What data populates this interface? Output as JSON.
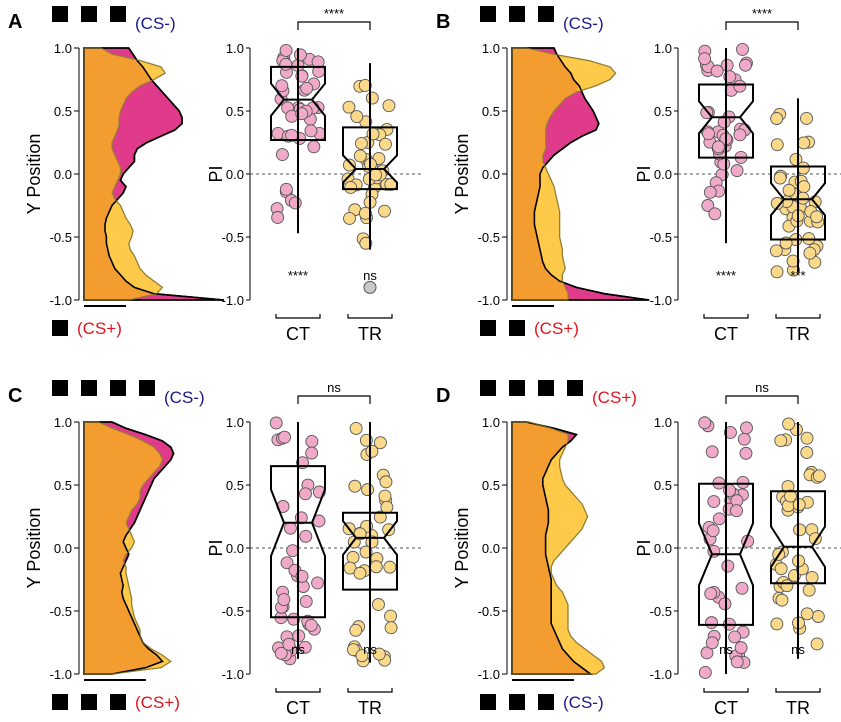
{
  "figure_description": "",
  "panels": [
    {
      "letter": "A",
      "top_label": "(CS-)",
      "top_label_color": "#1a1a8c",
      "top_squares": 3,
      "bottom_label": "(CS+)",
      "bottom_label_color": "#e0141e",
      "bottom_squares": 1,
      "density_ylabel": "Y Position",
      "pi_ylabel": "PI",
      "categories": [
        "CT",
        "TR"
      ],
      "comparison_label": "****",
      "sig_labels": [
        "****",
        "ns"
      ]
    },
    {
      "letter": "B",
      "top_label": "(CS-)",
      "top_label_color": "#1a1a8c",
      "top_squares": 3,
      "bottom_label": "(CS+)",
      "bottom_label_color": "#e0141e",
      "bottom_squares": 2,
      "density_ylabel": "Y Position",
      "pi_ylabel": "PI",
      "categories": [
        "CT",
        "TR"
      ],
      "comparison_label": "****",
      "sig_labels": [
        "****",
        "***"
      ]
    },
    {
      "letter": "C",
      "top_label": "(CS-)",
      "top_label_color": "#1a1a8c",
      "top_squares": 4,
      "bottom_label": "(CS+)",
      "bottom_label_color": "#e0141e",
      "bottom_squares": 3,
      "density_ylabel": "Y Position",
      "pi_ylabel": "PI",
      "categories": [
        "CT",
        "TR"
      ],
      "comparison_label": "ns",
      "sig_labels": [
        "ns",
        "ns"
      ]
    },
    {
      "letter": "D",
      "top_label": "(CS+)",
      "top_label_color": "#e0141e",
      "top_squares": 4,
      "bottom_label": "(CS-)",
      "bottom_label_color": "#1a1a8c",
      "bottom_squares": 3,
      "density_ylabel": "Y Position",
      "pi_ylabel": "PI",
      "categories": [
        "CT",
        "TR"
      ],
      "comparison_label": "ns",
      "sig_labels": [
        "ns",
        "ns"
      ]
    }
  ],
  "colors": {
    "ct_fill": "#e03a8a",
    "ct_point": "#f0a9c8",
    "tr_fill": "#ffc94a",
    "tr_point": "#fbd98a",
    "overlap_fill": "#f39c2f",
    "outlier": "#c8c8c8"
  },
  "chart_data": [
    {
      "panel": "A",
      "type": "box",
      "ylabel": "PI",
      "ylim": [
        -1.0,
        1.0
      ],
      "yticks": [
        "1.0",
        "0.5",
        "0.0",
        "-0.5",
        "-1.0"
      ],
      "categories": [
        "CT",
        "TR"
      ],
      "series": [
        {
          "name": "CT",
          "min": -0.47,
          "q1": 0.27,
          "median": 0.59,
          "q3": 0.85,
          "max": 1.0
        },
        {
          "name": "TR",
          "min": -0.6,
          "q1": -0.12,
          "median": 0.04,
          "q3": 0.37,
          "max": 0.88,
          "outliers": [
            -0.9
          ]
        }
      ],
      "density": {
        "ylabel": "Y Position",
        "ylim": [
          -1.0,
          1.0
        ],
        "ct_width": [
          0.32,
          0.35,
          0.38,
          0.42,
          0.45,
          0.48,
          0.52,
          0.56,
          0.6,
          0.64,
          0.68,
          0.7,
          0.7,
          0.65,
          0.55,
          0.45,
          0.38,
          0.36,
          0.36,
          0.32,
          0.28,
          0.26,
          0.3,
          0.28,
          0.24,
          0.2,
          0.18,
          0.16,
          0.15,
          0.15,
          0.16,
          0.16,
          0.17,
          0.18,
          0.2,
          0.22,
          0.26,
          0.3,
          0.36,
          0.5,
          1.0
        ],
        "tr_width": [
          0.12,
          0.2,
          0.4,
          0.55,
          0.58,
          0.5,
          0.4,
          0.34,
          0.3,
          0.28,
          0.26,
          0.25,
          0.25,
          0.24,
          0.22,
          0.2,
          0.2,
          0.22,
          0.24,
          0.26,
          0.26,
          0.24,
          0.22,
          0.2,
          0.22,
          0.26,
          0.28,
          0.3,
          0.33,
          0.35,
          0.34,
          0.32,
          0.33,
          0.36,
          0.38,
          0.4,
          0.44,
          0.5,
          0.56,
          0.52,
          0.32
        ]
      }
    },
    {
      "panel": "B",
      "type": "box",
      "ylabel": "PI",
      "ylim": [
        -1.0,
        1.0
      ],
      "yticks": [
        "1.0",
        "0.5",
        "0.0",
        "-0.5",
        "-1.0"
      ],
      "categories": [
        "CT",
        "TR"
      ],
      "series": [
        {
          "name": "CT",
          "min": -0.55,
          "q1": 0.13,
          "median": 0.45,
          "q3": 0.71,
          "max": 1.0
        },
        {
          "name": "TR",
          "min": -0.78,
          "q1": -0.52,
          "median": -0.2,
          "q3": 0.06,
          "max": 0.6
        }
      ],
      "density": {
        "ylabel": "Y Position",
        "ylim": [
          -1.0,
          1.0
        ],
        "ct_width": [
          0.3,
          0.32,
          0.35,
          0.38,
          0.42,
          0.44,
          0.48,
          0.5,
          0.52,
          0.55,
          0.58,
          0.6,
          0.62,
          0.6,
          0.5,
          0.42,
          0.36,
          0.3,
          0.26,
          0.22,
          0.2,
          0.2,
          0.2,
          0.19,
          0.18,
          0.17,
          0.16,
          0.16,
          0.16,
          0.17,
          0.18,
          0.19,
          0.2,
          0.21,
          0.22,
          0.24,
          0.28,
          0.34,
          0.46,
          0.66,
          0.98
        ],
        "tr_width": [
          0.1,
          0.3,
          0.55,
          0.7,
          0.74,
          0.7,
          0.6,
          0.46,
          0.38,
          0.34,
          0.3,
          0.27,
          0.25,
          0.24,
          0.24,
          0.24,
          0.24,
          0.22,
          0.22,
          0.24,
          0.26,
          0.28,
          0.3,
          0.31,
          0.32,
          0.33,
          0.34,
          0.34,
          0.34,
          0.34,
          0.34,
          0.35,
          0.36,
          0.36,
          0.37,
          0.38,
          0.36,
          0.36,
          0.38,
          0.4,
          0.4
        ]
      }
    },
    {
      "panel": "C",
      "type": "box",
      "ylabel": "PI",
      "ylim": [
        -1.0,
        1.0
      ],
      "yticks": [
        "1.0",
        "0.5",
        "0.0",
        "-0.5",
        "-1.0"
      ],
      "categories": [
        "CT",
        "TR"
      ],
      "series": [
        {
          "name": "CT",
          "min": -0.88,
          "q1": -0.55,
          "median": 0.2,
          "q3": 0.65,
          "max": 1.0
        },
        {
          "name": "TR",
          "min": -0.91,
          "q1": -0.33,
          "median": 0.08,
          "q3": 0.28,
          "max": 1.0
        }
      ],
      "density": {
        "ylabel": "Y Position",
        "ylim": [
          -1.0,
          1.0
        ],
        "ct_width": [
          0.2,
          0.3,
          0.44,
          0.56,
          0.62,
          0.64,
          0.62,
          0.58,
          0.54,
          0.5,
          0.48,
          0.46,
          0.44,
          0.42,
          0.4,
          0.38,
          0.36,
          0.33,
          0.3,
          0.28,
          0.3,
          0.32,
          0.3,
          0.28,
          0.26,
          0.27,
          0.28,
          0.27,
          0.28,
          0.3,
          0.32,
          0.34,
          0.36,
          0.38,
          0.4,
          0.42,
          0.46,
          0.52,
          0.56,
          0.44,
          0.2
        ],
        "tr_width": [
          0.1,
          0.2,
          0.32,
          0.42,
          0.5,
          0.54,
          0.56,
          0.54,
          0.5,
          0.46,
          0.42,
          0.4,
          0.4,
          0.38,
          0.34,
          0.32,
          0.3,
          0.32,
          0.34,
          0.36,
          0.34,
          0.3,
          0.28,
          0.3,
          0.3,
          0.31,
          0.32,
          0.33,
          0.34,
          0.34,
          0.35,
          0.36,
          0.38,
          0.4,
          0.4,
          0.42,
          0.48,
          0.56,
          0.62,
          0.55,
          0.2
        ]
      }
    },
    {
      "panel": "D",
      "type": "box",
      "ylabel": "PI",
      "ylim": [
        -1.0,
        1.0
      ],
      "yticks": [
        "1.0",
        "0.5",
        "0.0",
        "-0.5",
        "-1.0"
      ],
      "categories": [
        "CT",
        "TR"
      ],
      "series": [
        {
          "name": "CT",
          "min": -1.0,
          "q1": -0.61,
          "median": -0.05,
          "q3": 0.51,
          "max": 1.0
        },
        {
          "name": "TR",
          "min": -0.88,
          "q1": -0.28,
          "median": 0.01,
          "q3": 0.45,
          "max": 1.0
        }
      ],
      "density": {
        "ylabel": "Y Position",
        "ylim": [
          -1.0,
          1.0
        ],
        "ct_width": [
          0.1,
          0.3,
          0.46,
          0.42,
          0.36,
          0.32,
          0.28,
          0.26,
          0.24,
          0.22,
          0.22,
          0.23,
          0.24,
          0.25,
          0.26,
          0.26,
          0.26,
          0.25,
          0.24,
          0.24,
          0.24,
          0.24,
          0.25,
          0.26,
          0.27,
          0.28,
          0.28,
          0.28,
          0.28,
          0.28,
          0.28,
          0.28,
          0.28,
          0.3,
          0.32,
          0.34,
          0.36,
          0.4,
          0.44,
          0.5,
          0.56
        ],
        "tr_width": [
          0.12,
          0.28,
          0.4,
          0.4,
          0.38,
          0.36,
          0.34,
          0.34,
          0.35,
          0.36,
          0.38,
          0.42,
          0.46,
          0.5,
          0.52,
          0.54,
          0.52,
          0.5,
          0.46,
          0.42,
          0.38,
          0.34,
          0.3,
          0.28,
          0.28,
          0.3,
          0.32,
          0.36,
          0.38,
          0.4,
          0.4,
          0.4,
          0.4,
          0.4,
          0.42,
          0.46,
          0.52,
          0.58,
          0.64,
          0.66,
          0.6
        ]
      }
    }
  ]
}
